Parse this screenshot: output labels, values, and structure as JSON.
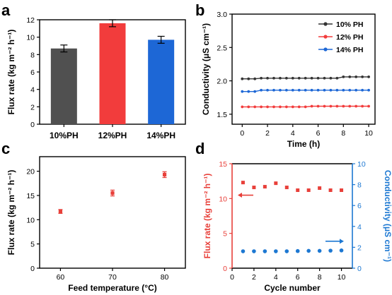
{
  "chart_data": [
    {
      "panel": "a",
      "type": "bar",
      "categories": [
        "10%PH",
        "12%PH",
        "14%PH"
      ],
      "values": [
        8.7,
        11.6,
        9.7
      ],
      "errors": [
        0.4,
        0.4,
        0.4
      ],
      "colors": [
        "#505050",
        "#f23c3c",
        "#1d67d6"
      ],
      "ylabel": "Flux rate (kg m⁻² h⁻¹)",
      "ylim": [
        0,
        12
      ],
      "yticks": [
        "0",
        "2",
        "4",
        "6",
        "8",
        "10",
        "12"
      ]
    },
    {
      "panel": "b",
      "type": "line",
      "x": [
        0,
        0.5,
        1,
        1.5,
        2,
        2.5,
        3,
        3.5,
        4,
        4.5,
        5,
        5.5,
        6,
        6.5,
        7,
        7.5,
        8,
        8.5,
        9,
        9.5,
        10
      ],
      "series": [
        {
          "name": "10% PH",
          "color": "#333333",
          "values": [
            2.03,
            2.03,
            2.03,
            2.04,
            2.04,
            2.04,
            2.04,
            2.04,
            2.04,
            2.04,
            2.04,
            2.04,
            2.04,
            2.04,
            2.04,
            2.04,
            2.06,
            2.06,
            2.06,
            2.06,
            2.06
          ]
        },
        {
          "name": "12% PH",
          "color": "#f23c3c",
          "values": [
            1.61,
            1.61,
            1.61,
            1.61,
            1.61,
            1.61,
            1.61,
            1.61,
            1.61,
            1.61,
            1.61,
            1.62,
            1.62,
            1.62,
            1.62,
            1.62,
            1.62,
            1.62,
            1.62,
            1.62,
            1.62
          ]
        },
        {
          "name": "14% PH",
          "color": "#1d67d6",
          "values": [
            1.84,
            1.84,
            1.84,
            1.86,
            1.86,
            1.86,
            1.86,
            1.86,
            1.86,
            1.86,
            1.86,
            1.86,
            1.86,
            1.86,
            1.86,
            1.86,
            1.86,
            1.86,
            1.86,
            1.86,
            1.86
          ]
        }
      ],
      "xlabel": "Time (h)",
      "ylabel": "Conductivity (μS cm⁻¹)",
      "xlim": [
        -0.8,
        10.5
      ],
      "ylim": [
        1.35,
        3.0
      ],
      "xticks": [
        "0",
        "2",
        "4",
        "6",
        "8",
        "10"
      ],
      "yticks": [
        "1.5",
        "2.0",
        "2.5",
        "3.0"
      ],
      "legend": "top-right"
    },
    {
      "panel": "c",
      "type": "scatter",
      "x": [
        60,
        70,
        80
      ],
      "values": [
        11.7,
        15.5,
        19.3
      ],
      "errors": [
        0.4,
        0.6,
        0.6
      ],
      "color": "#e8403a",
      "xlabel": "Feed temperature (°C)",
      "ylabel": "Flux rate (kg m⁻² h⁻¹)",
      "xlim": [
        56,
        84
      ],
      "ylim": [
        0,
        23
      ],
      "xticks": [
        "60",
        "70",
        "80"
      ],
      "yticks": [
        "0",
        "5",
        "10",
        "15",
        "20"
      ]
    },
    {
      "panel": "d",
      "type": "scatter",
      "x": [
        1,
        2,
        3,
        4,
        5,
        6,
        7,
        8,
        9,
        10
      ],
      "series": [
        {
          "name": "Flux rate",
          "axis": "left",
          "color": "#e8403a",
          "values": [
            12.3,
            11.6,
            11.7,
            12.2,
            11.6,
            11.2,
            11.2,
            11.5,
            11.2,
            11.2
          ]
        },
        {
          "name": "Conductivity",
          "axis": "right",
          "color": "#1d78d2",
          "values": [
            1.62,
            1.62,
            1.62,
            1.62,
            1.62,
            1.64,
            1.66,
            1.66,
            1.68,
            1.7
          ]
        }
      ],
      "xlabel": "Cycle number",
      "ylabel": "Flux rate (kg m⁻² h⁻¹)",
      "y2label": "Conductivity (μS cm⁻¹)",
      "xlim": [
        0,
        11
      ],
      "ylim": [
        0,
        15
      ],
      "y2lim": [
        0,
        10
      ],
      "xticks": [
        "0",
        "2",
        "4",
        "6",
        "8",
        "10"
      ],
      "yticks": [
        "0",
        "5",
        "10",
        "15"
      ],
      "y2ticks": [
        "0",
        "2",
        "4",
        "6",
        "8",
        "10"
      ],
      "left_color": "#e8403a",
      "right_color": "#1d78d2"
    }
  ]
}
